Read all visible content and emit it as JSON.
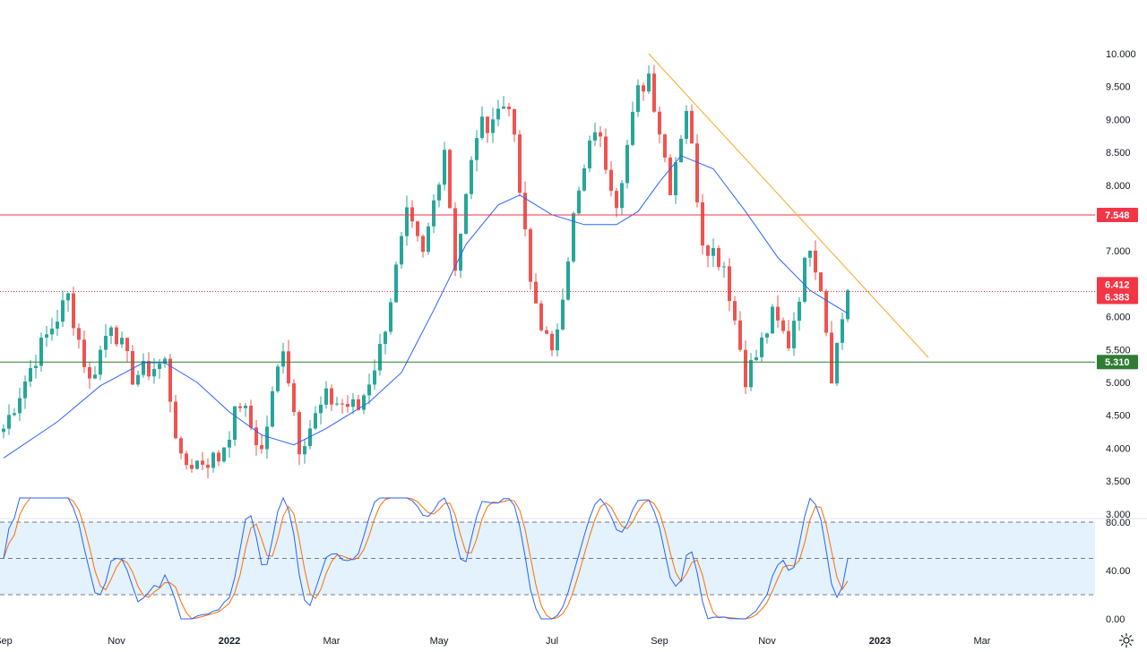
{
  "chart_data": {
    "type": "candlestick",
    "y_axis": {
      "min": 3.0,
      "max": 10.0,
      "ticks": [
        "10.000",
        "9.500",
        "9.000",
        "8.500",
        "8.000",
        "7.500",
        "7.000",
        "6.500",
        "6.000",
        "5.500",
        "5.000",
        "4.500",
        "4.000",
        "3.500",
        "3.000"
      ]
    },
    "x_axis": {
      "labels": [
        {
          "text": "Sep",
          "idx": 0,
          "bold": false
        },
        {
          "text": "Nov",
          "idx": 21,
          "bold": false
        },
        {
          "text": "2022",
          "idx": 42,
          "bold": true
        },
        {
          "text": "Mar",
          "idx": 61,
          "bold": false
        },
        {
          "text": "May",
          "idx": 81,
          "bold": false
        },
        {
          "text": "Jul",
          "idx": 102,
          "bold": false
        },
        {
          "text": "Sep",
          "idx": 122,
          "bold": false
        },
        {
          "text": "Nov",
          "idx": 142,
          "bold": false
        },
        {
          "text": "2023",
          "idx": 163,
          "bold": true
        },
        {
          "text": "Mar",
          "idx": 182,
          "bold": false
        }
      ]
    },
    "key_points": [
      {
        "idx": 0,
        "close": 4.3
      },
      {
        "idx": 6,
        "close": 5.4
      },
      {
        "idx": 12,
        "close": 6.3
      },
      {
        "idx": 16,
        "close": 5.0
      },
      {
        "idx": 20,
        "close": 5.95
      },
      {
        "idx": 24,
        "close": 5.1
      },
      {
        "idx": 30,
        "close": 5.3
      },
      {
        "idx": 33,
        "close": 3.75
      },
      {
        "idx": 40,
        "close": 3.85
      },
      {
        "idx": 44,
        "close": 4.7
      },
      {
        "idx": 48,
        "close": 3.95
      },
      {
        "idx": 52,
        "close": 5.6
      },
      {
        "idx": 55,
        "close": 4.05
      },
      {
        "idx": 60,
        "close": 4.75
      },
      {
        "idx": 66,
        "close": 4.6
      },
      {
        "idx": 70,
        "close": 5.5
      },
      {
        "idx": 75,
        "close": 7.5
      },
      {
        "idx": 78,
        "close": 6.9
      },
      {
        "idx": 82,
        "close": 8.6
      },
      {
        "idx": 84,
        "close": 6.8
      },
      {
        "idx": 88,
        "close": 8.8
      },
      {
        "idx": 94,
        "close": 9.3
      },
      {
        "idx": 98,
        "close": 6.5
      },
      {
        "idx": 102,
        "close": 5.35
      },
      {
        "idx": 106,
        "close": 7.5
      },
      {
        "idx": 110,
        "close": 8.9
      },
      {
        "idx": 114,
        "close": 7.8
      },
      {
        "idx": 118,
        "close": 9.4
      },
      {
        "idx": 120,
        "close": 9.7
      },
      {
        "idx": 124,
        "close": 8.0
      },
      {
        "idx": 127,
        "close": 9.2
      },
      {
        "idx": 130,
        "close": 7.2
      },
      {
        "idx": 134,
        "close": 6.8
      },
      {
        "idx": 138,
        "close": 5.1
      },
      {
        "idx": 140,
        "close": 5.4
      },
      {
        "idx": 143,
        "close": 6.0
      },
      {
        "idx": 146,
        "close": 5.6
      },
      {
        "idx": 150,
        "close": 7.15
      },
      {
        "idx": 152,
        "close": 6.5
      },
      {
        "idx": 154,
        "close": 5.15
      },
      {
        "idx": 157,
        "close": 6.4
      }
    ],
    "moving_average_points": [
      {
        "idx": 0,
        "v": 3.85
      },
      {
        "idx": 10,
        "v": 4.4
      },
      {
        "idx": 18,
        "v": 4.95
      },
      {
        "idx": 26,
        "v": 5.3
      },
      {
        "idx": 30,
        "v": 5.3
      },
      {
        "idx": 36,
        "v": 5.0
      },
      {
        "idx": 42,
        "v": 4.55
      },
      {
        "idx": 48,
        "v": 4.2
      },
      {
        "idx": 54,
        "v": 4.05
      },
      {
        "idx": 60,
        "v": 4.3
      },
      {
        "idx": 68,
        "v": 4.7
      },
      {
        "idx": 74,
        "v": 5.15
      },
      {
        "idx": 80,
        "v": 6.1
      },
      {
        "idx": 86,
        "v": 7.1
      },
      {
        "idx": 92,
        "v": 7.7
      },
      {
        "idx": 96,
        "v": 7.85
      },
      {
        "idx": 102,
        "v": 7.55
      },
      {
        "idx": 108,
        "v": 7.4
      },
      {
        "idx": 114,
        "v": 7.4
      },
      {
        "idx": 118,
        "v": 7.6
      },
      {
        "idx": 122,
        "v": 8.05
      },
      {
        "idx": 126,
        "v": 8.45
      },
      {
        "idx": 132,
        "v": 8.25
      },
      {
        "idx": 138,
        "v": 7.6
      },
      {
        "idx": 144,
        "v": 6.9
      },
      {
        "idx": 150,
        "v": 6.4
      },
      {
        "idx": 157,
        "v": 6.05
      }
    ],
    "trendline": {
      "start": {
        "idx": 120,
        "v": 10.0
      },
      "end": {
        "idx": 172,
        "v": 5.38
      },
      "color": "#f7a727"
    },
    "horizontal_levels": [
      {
        "value": 7.548,
        "label": "7.548",
        "color": "#f23645",
        "style": "solid"
      },
      {
        "value": 6.412,
        "label": "6.412",
        "color": "#f23645",
        "style": "none"
      },
      {
        "value": 6.383,
        "label": "6.383",
        "color": "#f23645",
        "style": "dotted"
      },
      {
        "value": 5.31,
        "label": "5.310",
        "color": "#2e7d32",
        "style": "solid"
      }
    ],
    "indicator": {
      "type": "stochastic",
      "ticks": [
        "80.00",
        "40.00",
        "0.00"
      ],
      "levels": [
        80,
        50,
        20
      ],
      "band": [
        20,
        80
      ]
    },
    "colors": {
      "up": "#26a69a",
      "down": "#ef5350",
      "ma": "#2962ff",
      "stoch_k": "#2962ff",
      "stoch_d": "#ff6d00",
      "band_fill": "#e3f2fd"
    },
    "settings_icon": "gear-icon"
  }
}
